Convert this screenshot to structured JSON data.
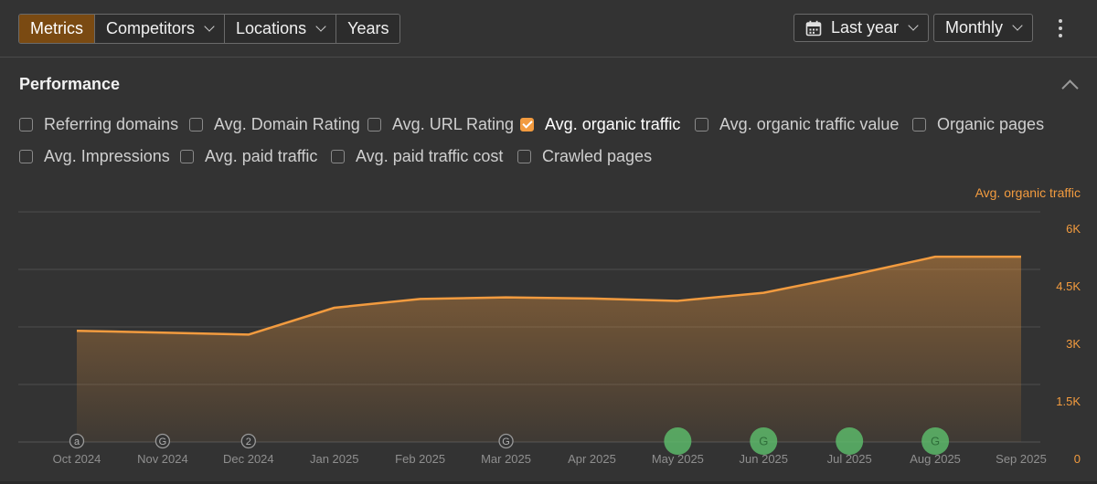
{
  "toolbar": {
    "tabs": [
      {
        "label": "Metrics",
        "active": true
      },
      {
        "label": "Competitors",
        "dropdown": true
      },
      {
        "label": "Locations",
        "dropdown": true
      },
      {
        "label": "Years",
        "dropdown": false
      }
    ],
    "date_range": "Last year",
    "granularity": "Monthly"
  },
  "section": {
    "title": "Performance"
  },
  "metrics_row1": [
    {
      "label": "Referring domains",
      "checked": false
    },
    {
      "label": "Avg. Domain Rating",
      "checked": false
    },
    {
      "label": "Avg. URL Rating",
      "checked": false
    },
    {
      "label": "Avg. organic traffic",
      "checked": true
    },
    {
      "label": "Avg. organic traffic value",
      "checked": false
    },
    {
      "label": "Organic pages",
      "checked": false
    }
  ],
  "metrics_row2": [
    {
      "label": "Avg. Impressions",
      "checked": false
    },
    {
      "label": "Avg. paid traffic",
      "checked": false
    },
    {
      "label": "Avg. paid traffic cost",
      "checked": false
    },
    {
      "label": "Crawled pages",
      "checked": false
    }
  ],
  "colors": {
    "accent": "#f29b3f",
    "active_tab": "#7a4a12",
    "update_marker": "#5cb86a",
    "background": "#333333"
  },
  "chart_data": {
    "type": "area",
    "series_label": "Avg. organic traffic",
    "x": [
      "Oct 2024",
      "Nov 2024",
      "Dec 2024",
      "Jan 2025",
      "Feb 2025",
      "Mar 2025",
      "Apr 2025",
      "May 2025",
      "Jun 2025",
      "Jul 2025",
      "Aug 2025",
      "Sep 2025"
    ],
    "series": [
      {
        "name": "Avg. organic traffic",
        "values": [
          2900,
          2850,
          2800,
          3500,
          3730,
          3770,
          3740,
          3680,
          3890,
          4340,
          4830,
          4830
        ]
      }
    ],
    "y_ticks": [
      "0",
      "1.5K",
      "3K",
      "4.5K",
      "6K"
    ],
    "ylim": [
      0,
      6000
    ],
    "grid": true,
    "y_axis_side": "right",
    "event_markers": [
      {
        "x": "Oct 2024",
        "icon": "a",
        "style": "outline"
      },
      {
        "x": "Nov 2024",
        "icon": "G",
        "style": "outline"
      },
      {
        "x": "Dec 2024",
        "icon": "2",
        "style": "outline"
      },
      {
        "x": "Mar 2025",
        "icon": "G",
        "style": "outline"
      },
      {
        "x": "May 2025",
        "icon": "",
        "style": "filled"
      },
      {
        "x": "Jun 2025",
        "icon": "G",
        "style": "filled"
      },
      {
        "x": "Jul 2025",
        "icon": "",
        "style": "filled"
      },
      {
        "x": "Aug 2025",
        "icon": "G",
        "style": "filled"
      }
    ]
  }
}
